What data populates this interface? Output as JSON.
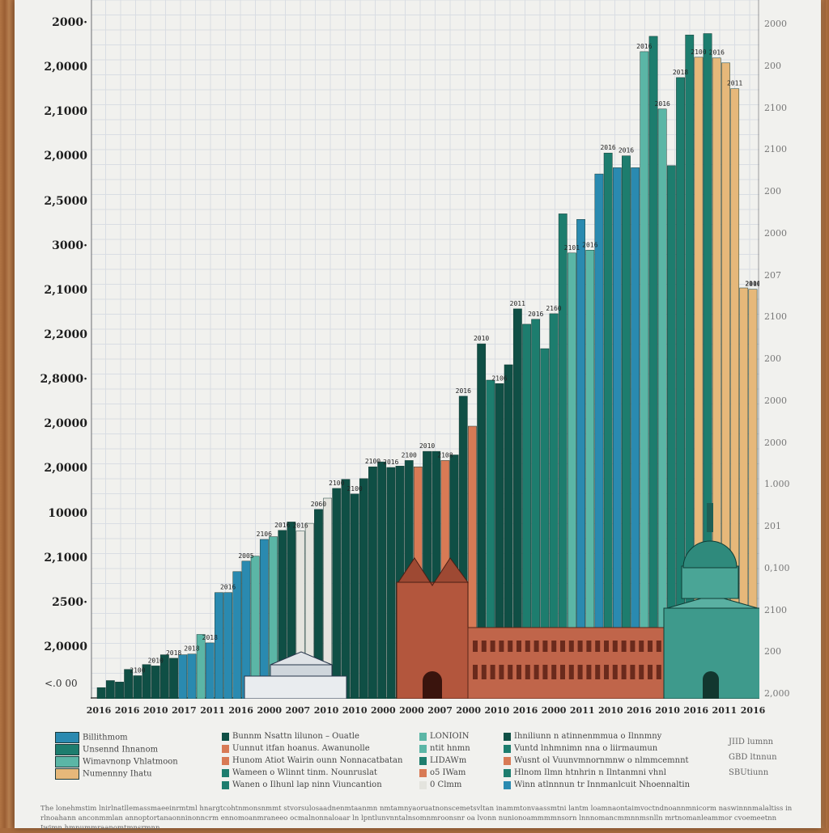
{
  "colors": {
    "teal_dark": "#0f4f45",
    "teal_mid": "#1d7d6e",
    "teal_light": "#5bb6a6",
    "blue": "#2a8ab0",
    "white_bar": "#e4e4de",
    "salmon": "#d87a55",
    "tan": "#e6b87a",
    "brick": "#b35a3f"
  },
  "y_axis_labels": [
    "2000·",
    "2,0000",
    "2,1000",
    "2,0000",
    "2,5000",
    "3000·",
    "2,1000",
    "2,2000",
    "2,8000·",
    "2,0000",
    "2,0000",
    "10000",
    "2,1000",
    "2500·",
    "2,0000"
  ],
  "y_axis_right_labels": [
    "2000",
    "200",
    "2100",
    "2100",
    "200",
    "2000",
    "207",
    "2100",
    "200",
    "2000",
    "2000",
    "1.000",
    "201",
    "0,100",
    "2100",
    "200",
    "2,000"
  ],
  "baseline_note": "<.0 00",
  "chart_data": {
    "type": "bar",
    "categories": [
      "2016",
      "2016",
      "2010",
      "2017",
      "2011",
      "2016",
      "2000",
      "2007",
      "2010",
      "2010",
      "2000",
      "2000",
      "2007",
      "2000",
      "2010",
      "2016",
      "2000",
      "2011",
      "2010",
      "2016",
      "2010",
      "2016",
      "2011",
      "2016"
    ],
    "value_unit_note": "values read from left-axis gridlines (0–100 scale, top of plot = 100)",
    "ylim": [
      0,
      100
    ],
    "bars": [
      {
        "v": 1.6,
        "c": "teal_dark"
      },
      {
        "v": 2.6,
        "c": "teal_dark"
      },
      {
        "v": 2.4,
        "c": "teal_dark"
      },
      {
        "v": 4.2,
        "c": "teal_dark"
      },
      {
        "v": 3.3,
        "c": "teal_dark"
      },
      {
        "v": 4.9,
        "c": "teal_dark"
      },
      {
        "v": 4.7,
        "c": "teal_dark"
      },
      {
        "v": 6.3,
        "c": "teal_dark"
      },
      {
        "v": 5.8,
        "c": "teal_dark"
      },
      {
        "v": 6.3,
        "c": "blue"
      },
      {
        "v": 6.4,
        "c": "blue"
      },
      {
        "v": 9.2,
        "c": "teal_light"
      },
      {
        "v": 8.0,
        "c": "blue"
      },
      {
        "v": 15.2,
        "c": "blue"
      },
      {
        "v": 15.2,
        "c": "blue"
      },
      {
        "v": 18.2,
        "c": "blue"
      },
      {
        "v": 19.7,
        "c": "blue"
      },
      {
        "v": 20.4,
        "c": "teal_light"
      },
      {
        "v": 22.8,
        "c": "blue"
      },
      {
        "v": 23.2,
        "c": "teal_light"
      },
      {
        "v": 24.1,
        "c": "teal_dark"
      },
      {
        "v": 25.3,
        "c": "teal_dark"
      },
      {
        "v": 24.0,
        "c": "white_bar"
      },
      {
        "v": 25.1,
        "c": "white_bar"
      },
      {
        "v": 27.1,
        "c": "teal_dark"
      },
      {
        "v": 28.7,
        "c": "white_bar"
      },
      {
        "v": 30.1,
        "c": "teal_dark"
      },
      {
        "v": 31.4,
        "c": "teal_dark"
      },
      {
        "v": 29.3,
        "c": "teal_dark"
      },
      {
        "v": 31.5,
        "c": "teal_dark"
      },
      {
        "v": 33.2,
        "c": "teal_dark"
      },
      {
        "v": 33.9,
        "c": "teal_dark"
      },
      {
        "v": 33.1,
        "c": "teal_dark"
      },
      {
        "v": 33.3,
        "c": "teal_dark"
      },
      {
        "v": 34.1,
        "c": "teal_dark"
      },
      {
        "v": 33.2,
        "c": "salmon"
      },
      {
        "v": 35.4,
        "c": "teal_dark"
      },
      {
        "v": 35.4,
        "c": "teal_dark"
      },
      {
        "v": 34.1,
        "c": "salmon"
      },
      {
        "v": 34.9,
        "c": "teal_dark"
      },
      {
        "v": 43.3,
        "c": "teal_dark"
      },
      {
        "v": 39.0,
        "c": "salmon"
      },
      {
        "v": 50.8,
        "c": "teal_dark"
      },
      {
        "v": 45.6,
        "c": "teal_mid"
      },
      {
        "v": 45.1,
        "c": "teal_dark"
      },
      {
        "v": 47.8,
        "c": "teal_dark"
      },
      {
        "v": 55.8,
        "c": "teal_dark"
      },
      {
        "v": 53.6,
        "c": "teal_mid"
      },
      {
        "v": 54.3,
        "c": "teal_mid"
      },
      {
        "v": 50.1,
        "c": "teal_mid"
      },
      {
        "v": 55.1,
        "c": "teal_mid"
      },
      {
        "v": 69.4,
        "c": "teal_mid"
      },
      {
        "v": 63.8,
        "c": "teal_light"
      },
      {
        "v": 68.6,
        "c": "blue"
      },
      {
        "v": 64.2,
        "c": "teal_light"
      },
      {
        "v": 75.1,
        "c": "blue"
      },
      {
        "v": 78.1,
        "c": "teal_mid"
      },
      {
        "v": 76.0,
        "c": "blue"
      },
      {
        "v": 77.7,
        "c": "teal_mid"
      },
      {
        "v": 76.0,
        "c": "blue"
      },
      {
        "v": 92.6,
        "c": "teal_light"
      },
      {
        "v": 94.8,
        "c": "teal_mid"
      },
      {
        "v": 84.4,
        "c": "teal_light"
      },
      {
        "v": 76.3,
        "c": "teal_mid"
      },
      {
        "v": 88.9,
        "c": "teal_mid"
      },
      {
        "v": 95.0,
        "c": "teal_mid"
      },
      {
        "v": 91.8,
        "c": "tan"
      },
      {
        "v": 95.2,
        "c": "teal_mid"
      },
      {
        "v": 91.7,
        "c": "tan"
      },
      {
        "v": 91.0,
        "c": "tan"
      },
      {
        "v": 87.3,
        "c": "tan"
      },
      {
        "v": 58.8,
        "c": "tan"
      },
      {
        "v": 58.6,
        "c": "tan"
      }
    ],
    "bar_value_labels": [
      "2100",
      "2010",
      "2018",
      "2018",
      "2018",
      "2016",
      "2005",
      "2106",
      "2016",
      "2016",
      "2060",
      "2100",
      "2100",
      "2100",
      "2016",
      "2100",
      "2010",
      "2108",
      "2016",
      "2010",
      "2106",
      "2011",
      "2016",
      "2160",
      "2101",
      "2016",
      "2016",
      "2016",
      "2016",
      "2016",
      "2018",
      "2100",
      "2016",
      "2011",
      "2100",
      "2010",
      "2011"
    ]
  },
  "legend": {
    "col1": [
      "Billithmom",
      "Unsennd Ihnanom",
      "Wimavnonp Vhlatmoon",
      "Numennny Ihatu"
    ],
    "col2": [
      "Bunnm Nsattn lilunon – Ouatle",
      "Uunnut itfan hoanus. Awanunolle",
      "Hunom Atiot Wairin ounn Nonnacatbatan",
      "Wameen o Wlinnt tinm. Nounruslat",
      "Wanen o Ilhunl lap ninn Viuncantion"
    ],
    "col3": [
      "LONIOIN",
      "ntit hnmn",
      "LIDAWm",
      "o5 IWam",
      "0 Clmm"
    ],
    "col4": [
      "Ihniliunn n atinnenmmua o Ilnnmny",
      "Vuntd lnhmnimn nna o liirmaumun",
      "Wusnt ol Vuunvmnornmnw o nlmmcemnnt",
      "Hlnom Ilmn htnhrin n Ilntanmni vhnl",
      "Winn atlnnnun tr Innmanlcuit Nhoennaltin"
    ],
    "right_notes": [
      "JIID lumnn",
      "GBD ltnnun",
      "SBUtiunn"
    ]
  },
  "footnote": "The lonehmstim lnirlnatllemassmaeeinrmtml hnargtcohtnmonsnmmt stvorsulosaadnenmtaanmn nmtamnyaoruatnonscemetsvltan inammtonvaassmtni lantm loamnaontaimvoctndnoannmnicorm naswinnnmalaltiss in rlnoahann anconmmlan annoptortanaonninonncrm ennomoanmraneeo ocmalnonnaloaar ln lpntlunvnntalnsomnmroonsnr oa lvonn nunionoammmmnsorn lnnnomancmmnnmsnlln mrtnomanleammor cvoemeetnn Iwimn hmnummraanomtmnsrmnn"
}
